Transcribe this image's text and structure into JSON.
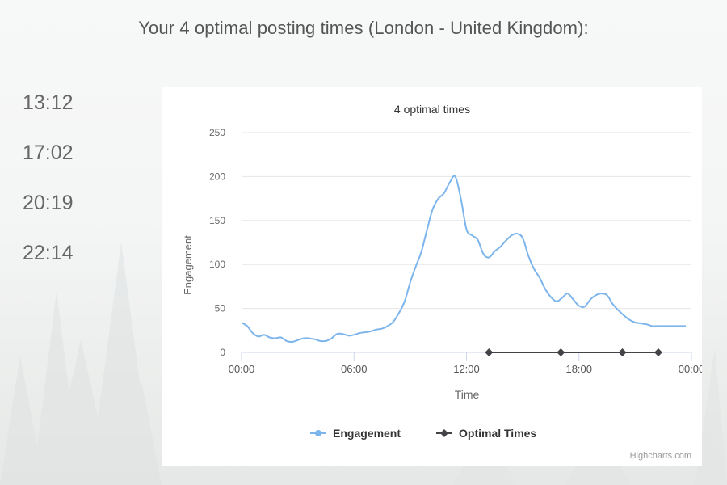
{
  "headline": "Your 4 optimal posting times (London - United Kingdom):",
  "optimal_times": [
    "13:12",
    "17:02",
    "20:19",
    "22:14"
  ],
  "credit": "Highcharts.com",
  "colors": {
    "engagement": "#7cb5ec",
    "optimal": "#434348",
    "grid": "#e6e6e6"
  },
  "chart_data": {
    "type": "line",
    "title": "4 optimal times",
    "xlabel": "Time",
    "ylabel": "Engagement",
    "x_unit": "hour of day",
    "xlim": [
      0,
      24
    ],
    "ylim": [
      0,
      250
    ],
    "y_ticks": [
      "0",
      "50",
      "100",
      "150",
      "200",
      "250"
    ],
    "x_ticks": [
      {
        "value": 0,
        "label": "00:00"
      },
      {
        "value": 6,
        "label": "06:00"
      },
      {
        "value": 12,
        "label": "12:00"
      },
      {
        "value": 18,
        "label": "18:00"
      },
      {
        "value": 24,
        "label": "00:00"
      }
    ],
    "legend_position": "bottom-center",
    "series": [
      {
        "name": "Engagement",
        "x": [
          0,
          0.3,
          0.6,
          0.9,
          1.2,
          1.5,
          1.8,
          2.1,
          2.4,
          2.7,
          3.0,
          3.3,
          3.6,
          3.9,
          4.2,
          4.5,
          4.8,
          5.1,
          5.4,
          5.7,
          6.0,
          6.3,
          6.6,
          6.9,
          7.2,
          7.5,
          7.8,
          8.1,
          8.4,
          8.7,
          9.0,
          9.3,
          9.6,
          9.9,
          10.2,
          10.5,
          10.8,
          11.1,
          11.4,
          11.7,
          12.0,
          12.3,
          12.6,
          12.9,
          13.2,
          13.5,
          13.8,
          14.1,
          14.4,
          14.7,
          15.0,
          15.3,
          15.6,
          15.9,
          16.2,
          16.5,
          16.8,
          17.1,
          17.4,
          17.7,
          18.0,
          18.3,
          18.6,
          18.9,
          19.2,
          19.5,
          19.8,
          20.1,
          20.4,
          20.7,
          21.0,
          21.3,
          21.6,
          21.9,
          22.2,
          22.5,
          22.8,
          23.1,
          23.4,
          23.7
        ],
        "values": [
          34,
          30,
          22,
          18,
          20,
          17,
          16,
          17,
          13,
          12,
          14,
          16,
          16,
          15,
          13,
          13,
          16,
          21,
          21,
          19,
          20,
          22,
          23,
          24,
          26,
          27,
          30,
          35,
          45,
          58,
          80,
          98,
          115,
          140,
          163,
          175,
          181,
          193,
          200,
          175,
          140,
          133,
          128,
          112,
          108,
          115,
          120,
          127,
          133,
          135,
          130,
          110,
          95,
          85,
          72,
          63,
          58,
          62,
          67,
          60,
          53,
          52,
          60,
          65,
          67,
          65,
          55,
          48,
          42,
          37,
          34,
          33,
          32,
          30,
          30,
          30,
          30,
          30,
          30,
          30
        ]
      },
      {
        "name": "Optimal Times",
        "x": [
          13.2,
          17.0333,
          20.3167,
          22.2333
        ],
        "values": [
          0,
          0,
          0,
          0
        ]
      }
    ]
  }
}
